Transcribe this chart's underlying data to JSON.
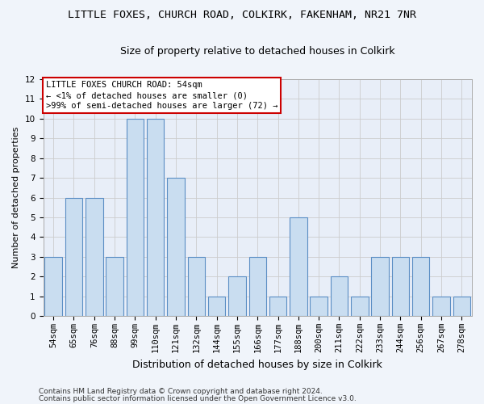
{
  "title1": "LITTLE FOXES, CHURCH ROAD, COLKIRK, FAKENHAM, NR21 7NR",
  "title2": "Size of property relative to detached houses in Colkirk",
  "xlabel": "Distribution of detached houses by size in Colkirk",
  "ylabel": "Number of detached properties",
  "categories": [
    "54sqm",
    "65sqm",
    "76sqm",
    "88sqm",
    "99sqm",
    "110sqm",
    "121sqm",
    "132sqm",
    "144sqm",
    "155sqm",
    "166sqm",
    "177sqm",
    "188sqm",
    "200sqm",
    "211sqm",
    "222sqm",
    "233sqm",
    "244sqm",
    "256sqm",
    "267sqm",
    "278sqm"
  ],
  "values": [
    3,
    6,
    6,
    3,
    10,
    10,
    7,
    3,
    1,
    2,
    3,
    1,
    5,
    1,
    2,
    1,
    3,
    3,
    3,
    1,
    1
  ],
  "bar_color": "#c9ddf0",
  "bar_edge_color": "#5b8ec4",
  "annotation_box_color": "#cc0000",
  "annotation_lines": [
    "LITTLE FOXES CHURCH ROAD: 54sqm",
    "← <1% of detached houses are smaller (0)",
    ">99% of semi-detached houses are larger (72) →"
  ],
  "ylim": [
    0,
    12
  ],
  "yticks": [
    0,
    1,
    2,
    3,
    4,
    5,
    6,
    7,
    8,
    9,
    10,
    11,
    12
  ],
  "grid_color": "#cccccc",
  "background_color": "#f0f4fa",
  "plot_bg_color": "#e8eef8",
  "footer1": "Contains HM Land Registry data © Crown copyright and database right 2024.",
  "footer2": "Contains public sector information licensed under the Open Government Licence v3.0.",
  "title1_fontsize": 9.5,
  "title2_fontsize": 9,
  "xlabel_fontsize": 9,
  "ylabel_fontsize": 8,
  "tick_fontsize": 7.5,
  "annotation_fontsize": 7.5,
  "footer_fontsize": 6.5
}
